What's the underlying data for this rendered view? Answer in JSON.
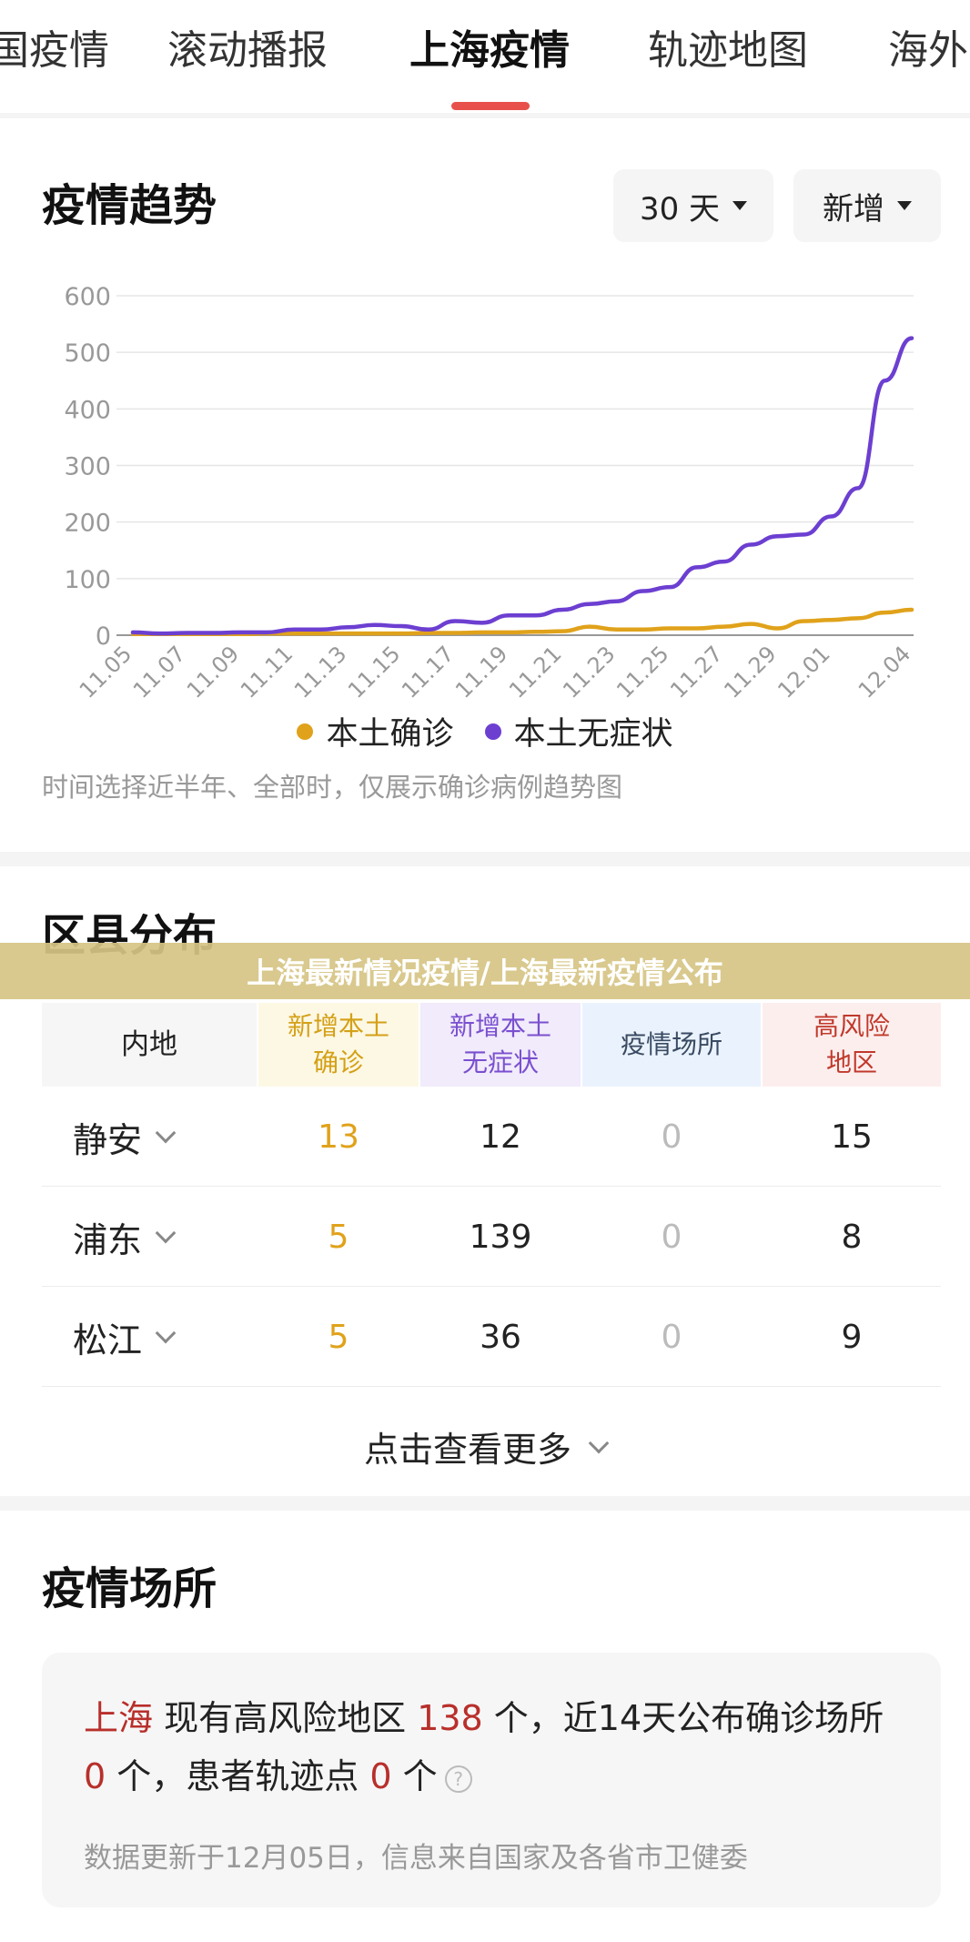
{
  "tabs": {
    "items": [
      "国疫情",
      "滚动播报",
      "上海疫情",
      "轨迹地图",
      "海外"
    ],
    "active": "上海疫情"
  },
  "trend": {
    "title": "疫情趋势",
    "range_label": "30 天",
    "type_label": "新增",
    "legend": [
      "本土确诊",
      "本土无症状"
    ],
    "note": "时间选择近半年、全部时，仅展示确诊病例趋势图"
  },
  "chart_data": {
    "type": "line",
    "x": [
      "11.05",
      "11.06",
      "11.07",
      "11.08",
      "11.09",
      "11.10",
      "11.11",
      "11.12",
      "11.13",
      "11.14",
      "11.15",
      "11.16",
      "11.17",
      "11.18",
      "11.19",
      "11.20",
      "11.21",
      "11.22",
      "11.23",
      "11.24",
      "11.25",
      "11.26",
      "11.27",
      "11.28",
      "11.29",
      "11.30",
      "12.01",
      "12.02",
      "12.03",
      "12.04"
    ],
    "tick_labels": [
      "11.05",
      "11.07",
      "11.09",
      "11.11",
      "11.13",
      "11.15",
      "11.17",
      "11.19",
      "11.21",
      "11.23",
      "11.25",
      "11.27",
      "11.29",
      "12.01",
      "12.04"
    ],
    "ylim": [
      0,
      600
    ],
    "y_ticks": [
      0,
      100,
      200,
      300,
      400,
      500,
      600
    ],
    "grid": true,
    "series": [
      {
        "name": "本土确诊",
        "color": "#e0a21b",
        "values": [
          2,
          2,
          2,
          2,
          2,
          3,
          3,
          3,
          3,
          3,
          3,
          4,
          4,
          5,
          5,
          6,
          7,
          15,
          10,
          10,
          12,
          12,
          15,
          20,
          12,
          25,
          27,
          30,
          40,
          45
        ]
      },
      {
        "name": "本土无症状",
        "color": "#6c3fd1",
        "values": [
          5,
          3,
          4,
          4,
          5,
          5,
          10,
          10,
          14,
          18,
          16,
          10,
          25,
          22,
          35,
          35,
          45,
          55,
          60,
          78,
          85,
          120,
          130,
          160,
          175,
          178,
          210,
          260,
          450,
          525
        ]
      }
    ]
  },
  "district": {
    "title": "区县分布",
    "banner": "上海最新情况疫情/上海最新疫情公布",
    "headers": [
      "内地",
      "新增本土\n确诊",
      "新增本土\n无症状",
      "疫情场所",
      "高风险\n地区"
    ],
    "rows": [
      {
        "name": "静安",
        "confirmed": "13",
        "asymptomatic": "12",
        "venues": "0",
        "risk": "15"
      },
      {
        "name": "浦东",
        "confirmed": "5",
        "asymptomatic": "139",
        "venues": "0",
        "risk": "8"
      },
      {
        "name": "松江",
        "confirmed": "5",
        "asymptomatic": "36",
        "venues": "0",
        "risk": "9"
      }
    ],
    "more_label": "点击查看更多"
  },
  "venue": {
    "title": "疫情场所",
    "city": "上海",
    "text1": " 现有高风险地区 ",
    "risk_count": "138",
    "text2": " 个，近14天公布确诊场所 ",
    "venue_count": "0",
    "text3": " 个，患者轨迹点 ",
    "track_count": "0",
    "text4": " 个",
    "note": "数据更新于12月05日，信息来自国家及各省市卫健委"
  },
  "colors": {
    "accent": "#e8514b",
    "confirmed": "#e0a21b",
    "asymptomatic": "#6c3fd1",
    "risk_red": "#b82f2b"
  }
}
